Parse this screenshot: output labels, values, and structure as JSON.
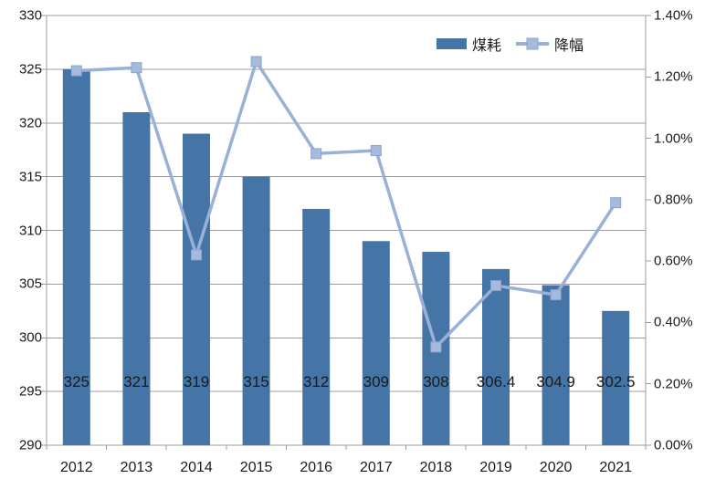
{
  "colors": {
    "bar": "#4574a7",
    "line": "#9ab0d6",
    "marker_fill": "#a6badd",
    "marker_edge": "#8ca4cd",
    "gridline": "#9c9c9c",
    "axis": "#9c9c9c",
    "text": "#1a1a1a"
  },
  "chart_data": {
    "type": "bar",
    "subtype": "bar+line combo, dual axis",
    "title": "",
    "categories": [
      "2012",
      "2013",
      "2014",
      "2015",
      "2016",
      "2017",
      "2018",
      "2019",
      "2020",
      "2021"
    ],
    "series": [
      {
        "name": "煤耗",
        "type": "bar",
        "axis": "left",
        "values": [
          325,
          321,
          319,
          315,
          312,
          309,
          308,
          306.4,
          304.9,
          302.5
        ],
        "data_labels": [
          "325",
          "321",
          "319",
          "315",
          "312",
          "309",
          "308",
          "306.4",
          "304.9",
          "302.5"
        ]
      },
      {
        "name": "降幅",
        "type": "line",
        "axis": "right",
        "marker": "square",
        "values_percent": [
          1.22,
          1.23,
          0.62,
          1.25,
          0.95,
          0.96,
          0.32,
          0.52,
          0.49,
          0.79
        ]
      }
    ],
    "left_axis": {
      "min": 290,
      "max": 330,
      "step": 5,
      "ticks": [
        "290",
        "295",
        "300",
        "305",
        "310",
        "315",
        "320",
        "325",
        "330"
      ]
    },
    "right_axis": {
      "min": 0,
      "max": 1.4,
      "step": 0.2,
      "ticks": [
        "0.00%",
        "0.20%",
        "0.40%",
        "0.60%",
        "0.80%",
        "1.00%",
        "1.20%",
        "1.40%"
      ]
    },
    "grid": true,
    "legend_position": "top-right-inside"
  }
}
